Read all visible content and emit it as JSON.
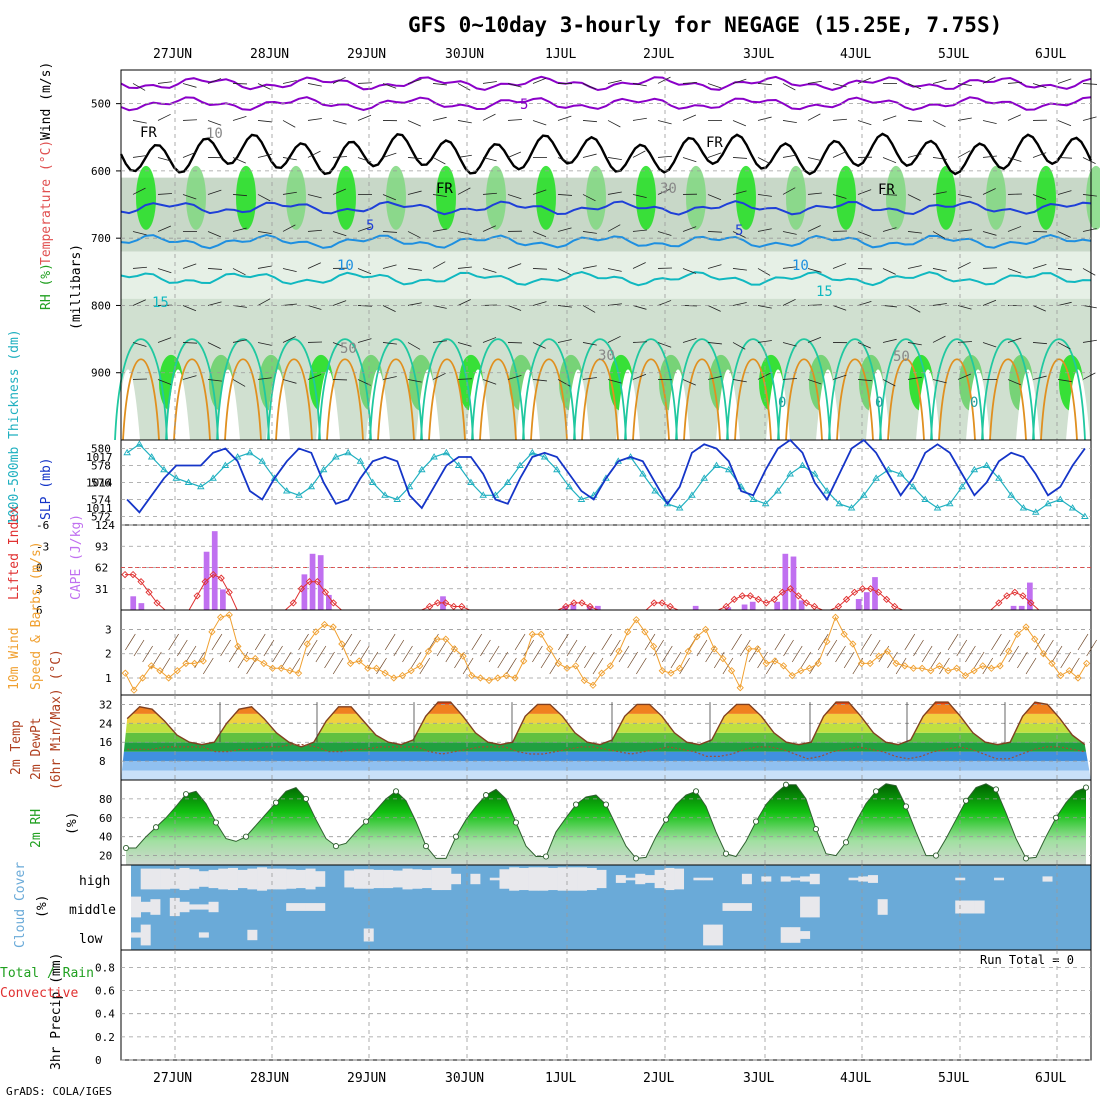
{
  "title": "GFS 0~10day 3-hourly for NEGAGE (15.25E, 7.75S)",
  "credit": "GrADS: COLA/IGES",
  "run_total": "Run Total = 0",
  "colors": {
    "grid": "#9a9a9a",
    "temp_purple": "#8a00c8",
    "temp_blue": "#1e3fd8",
    "temp_lightblue": "#1e8fe0",
    "temp_cyan": "#10b8c0",
    "temp_teal": "#20c8a0",
    "temp_orange": "#e09020",
    "slp": "#1535c8",
    "thickness": "#20b0c0",
    "cape": "#c070f0",
    "lifted": "#e03030",
    "wind10m": "#f0a030",
    "cloud": "#6aaad8",
    "cloud_light": "#e8e8ec"
  },
  "chart_data": [
    {
      "type": "heatmap",
      "panel": "upper-air",
      "ylabels": [
        "Temperature (°C)",
        "Wind (m/s)",
        "RH (%)",
        "(millibars)"
      ],
      "yticks": [
        500,
        600,
        700,
        800,
        900
      ],
      "ylim": [
        1000,
        450
      ],
      "x_dates": [
        "27JUN",
        "28JUN",
        "29JUN",
        "30JUN",
        "1JUL",
        "2JUL",
        "3JUL",
        "4JUL",
        "5JUL",
        "6JUL"
      ],
      "contour_labels": [
        "FR",
        "FR",
        "FR",
        "FR",
        "5",
        "5",
        "5",
        "10",
        "10",
        "15",
        "15",
        "50",
        "30",
        "10",
        "30",
        "50",
        "0",
        "0",
        "0"
      ]
    },
    {
      "type": "line",
      "panel": "slp-thickness",
      "ylabels": [
        "1000-500mb Thickness (dm)",
        "SLP (mb)"
      ],
      "y_left_ticks": [
        572,
        574,
        576,
        578,
        580
      ],
      "y_right_ticks": [
        1011,
        1014,
        1017
      ],
      "series": [
        {
          "name": "SLP (mb)",
          "ylim": [
            1009,
            1019
          ],
          "values": [
            1012,
            1010.5,
            1012.5,
            1014.5,
            1016,
            1016,
            1016,
            1017.5,
            1018,
            1016.5,
            1013,
            1012,
            1014.5,
            1016.5,
            1018,
            1017.5,
            1014,
            1011.5,
            1012,
            1014.5,
            1016.5,
            1017,
            1016.5,
            1012.5,
            1011,
            1013.5,
            1016,
            1017,
            1017,
            1015,
            1012,
            1011.5,
            1014.5,
            1017,
            1017.5,
            1017,
            1015,
            1013,
            1012,
            1014.5,
            1016.5,
            1017,
            1016.5,
            1014,
            1011.5,
            1013.5,
            1017.5,
            1018.5,
            1018,
            1016.5,
            1013,
            1012.5,
            1015.5,
            1018,
            1019,
            1017.5,
            1014,
            1012,
            1015,
            1018,
            1019,
            1017.5,
            1015,
            1012.5,
            1014.5,
            1017.5,
            1018.5,
            1017.5,
            1015,
            1012.5,
            1014,
            1016.5,
            1017.5,
            1017,
            1015,
            1012.5,
            1013.5,
            1016,
            1018
          ]
        },
        {
          "name": "Thickness (dm)",
          "ylim": [
            571,
            581
          ],
          "values": [
            579.5,
            580.5,
            579,
            577.5,
            576.5,
            576,
            575.5,
            576.5,
            578,
            579,
            579.5,
            578.5,
            576.5,
            575,
            574.5,
            575.5,
            577.5,
            579,
            579.5,
            578.5,
            576,
            574.5,
            574,
            575.5,
            577.5,
            579,
            579.5,
            578,
            576,
            574.5,
            574.5,
            576,
            578,
            579.5,
            579,
            577.5,
            575.5,
            574,
            574.5,
            576.5,
            578.5,
            579,
            577,
            575,
            573.5,
            573,
            574.5,
            576.5,
            578,
            577.5,
            575.5,
            574,
            573.5,
            575,
            577,
            578,
            577,
            575,
            573.5,
            573,
            574.5,
            576.5,
            577.5,
            577,
            575.5,
            574,
            573,
            573.5,
            575.5,
            577.5,
            578,
            576.5,
            574.5,
            573,
            572.5,
            573.5,
            574,
            573,
            572
          ]
        }
      ]
    },
    {
      "type": "bar",
      "panel": "cape-li",
      "ylabels": [
        "Lifted Index",
        "CAPE (J/kg)"
      ],
      "y_left_ticks": [
        -6,
        -3,
        0,
        3,
        6
      ],
      "y_right_ticks": [
        124,
        93,
        62,
        31
      ],
      "series": [
        {
          "name": "CAPE (J/kg)",
          "ylim": [
            0,
            124
          ],
          "values": [
            0,
            20,
            10,
            0,
            0,
            0,
            0,
            0,
            0,
            0,
            85,
            115,
            30,
            0,
            0,
            0,
            0,
            0,
            0,
            0,
            0,
            0,
            52,
            82,
            80,
            22,
            0,
            0,
            0,
            0,
            0,
            0,
            0,
            0,
            0,
            0,
            0,
            0,
            0,
            20,
            0,
            0,
            0,
            0,
            0,
            0,
            0,
            0,
            0,
            0,
            0,
            0,
            0,
            0,
            6,
            8,
            0,
            6,
            6,
            0,
            0,
            0,
            0,
            0,
            0,
            0,
            0,
            0,
            0,
            0,
            6,
            0,
            0,
            0,
            4,
            0,
            8,
            12,
            0,
            0,
            12,
            82,
            78,
            14,
            0,
            0,
            0,
            0,
            0,
            0,
            16,
            26,
            48,
            0,
            0,
            0,
            0,
            0,
            0,
            0,
            0,
            0,
            0,
            0,
            0,
            0,
            0,
            0,
            0,
            6,
            6,
            40,
            0,
            0,
            0,
            0,
            0,
            0,
            0
          ]
        },
        {
          "name": "Lifted Index",
          "ylim": [
            6,
            -6
          ],
          "values": [
            1,
            1,
            2,
            3.5,
            5,
            6,
            6,
            6,
            6,
            4,
            2,
            1,
            1.5,
            3.5,
            6,
            6,
            6,
            6,
            6,
            6,
            6,
            5,
            3,
            2,
            2,
            3.5,
            5,
            6,
            6,
            6,
            6,
            6,
            6,
            6,
            6,
            6,
            6,
            6,
            5.5,
            5,
            5,
            5.5,
            5.5,
            6,
            6,
            6,
            6,
            6,
            6,
            6,
            6,
            6,
            6,
            6,
            6,
            5.5,
            5,
            5,
            5.5,
            6,
            6,
            6,
            6,
            6,
            6,
            6,
            5,
            5,
            5.5,
            6,
            6,
            6,
            6,
            6,
            6,
            5.5,
            4.5,
            4,
            4,
            4.5,
            5,
            4.5,
            3.5,
            3,
            4,
            5,
            5.5,
            6,
            6,
            5.5,
            4.5,
            3.5,
            3,
            3,
            3.5,
            4.5,
            5.5,
            6,
            6,
            6,
            6,
            6,
            6,
            6,
            6,
            6,
            6,
            6,
            6,
            5,
            4,
            3.5,
            4,
            5,
            6,
            6,
            6,
            6,
            6,
            6,
            6
          ]
        }
      ]
    },
    {
      "type": "line",
      "panel": "wind10m",
      "ylabels": [
        "10m Wind",
        "Speed & Barbs (m/s)"
      ],
      "yticks": [
        1,
        2,
        3
      ],
      "ylim": [
        0.3,
        3.8
      ],
      "values": [
        1.2,
        0.5,
        1.0,
        1.5,
        1.3,
        1.0,
        1.3,
        1.6,
        1.6,
        1.7,
        2.9,
        3.5,
        3.6,
        2.3,
        1.8,
        1.8,
        1.6,
        1.4,
        1.4,
        1.3,
        1.2,
        2.4,
        2.9,
        3.2,
        3.1,
        2.4,
        1.6,
        1.7,
        1.4,
        1.4,
        1.2,
        1.0,
        1.1,
        1.3,
        1.5,
        2.1,
        2.6,
        2.6,
        2.2,
        1.9,
        1.1,
        1.0,
        0.9,
        1.0,
        1.1,
        1.0,
        1.7,
        2.8,
        2.8,
        2.2,
        1.6,
        1.4,
        1.5,
        0.9,
        0.7,
        1.2,
        1.5,
        2.1,
        2.9,
        3.4,
        2.9,
        2.3,
        1.3,
        1.2,
        1.4,
        2.1,
        2.7,
        3.0,
        2.2,
        1.8,
        1.3,
        0.6,
        2.2,
        2.2,
        1.6,
        1.7,
        1.5,
        1.1,
        1.3,
        1.4,
        1.6,
        2.5,
        3.5,
        2.8,
        2.4,
        1.6,
        1.6,
        1.9,
        2.1,
        1.6,
        1.5,
        1.4,
        1.4,
        1.3,
        1.5,
        1.3,
        1.4,
        1.1,
        1.3,
        1.5,
        1.4,
        1.5,
        2.1,
        2.8,
        3.1,
        2.6,
        2.0,
        1.6,
        1.1,
        1.3,
        1.0,
        1.6
      ]
    },
    {
      "type": "area",
      "panel": "temperature",
      "ylabels": [
        "2m Temp",
        "2m DewPt",
        "(6hr Min/Max) (°C)"
      ],
      "yticks": [
        8,
        16,
        24,
        32
      ],
      "ylim": [
        0,
        36
      ],
      "series": [
        {
          "name": "2m Temp",
          "values": [
            26,
            31,
            30,
            25,
            19,
            16,
            15,
            16,
            24,
            30,
            31,
            26,
            20,
            16,
            14,
            16,
            25,
            31,
            31,
            25,
            19,
            16,
            15,
            17,
            27,
            33,
            33,
            27,
            20,
            16,
            15,
            16,
            27,
            32,
            32,
            27,
            20,
            16,
            15,
            17,
            27,
            32,
            32,
            27,
            20,
            16,
            15,
            17,
            27,
            32,
            32,
            27,
            20,
            16,
            15,
            16,
            27,
            33,
            33,
            27,
            20,
            16,
            15,
            17,
            27,
            33,
            33,
            27,
            20,
            16,
            15,
            16,
            27,
            33,
            32,
            26,
            19,
            15
          ]
        },
        {
          "name": "2m DewPt",
          "values": [
            13,
            13,
            13,
            14,
            14,
            14,
            14,
            12,
            12,
            13,
            13,
            14,
            14,
            15,
            15,
            14,
            12,
            12,
            13,
            13,
            14,
            14,
            14,
            14,
            12,
            11,
            12,
            13,
            14,
            14,
            14,
            12,
            11,
            11,
            12,
            13,
            14,
            14,
            13,
            12,
            11,
            12,
            13,
            14,
            13,
            12,
            10,
            10,
            11,
            13,
            14,
            14,
            13,
            11,
            9,
            10,
            12,
            13,
            14,
            13,
            12,
            10,
            9,
            10,
            12,
            13,
            14,
            13,
            11,
            9,
            9,
            11,
            13,
            14,
            14,
            13,
            12
          ]
        }
      ]
    },
    {
      "type": "area",
      "panel": "rh2m",
      "ylabels": [
        "2m RH",
        "(%)"
      ],
      "yticks": [
        20,
        40,
        60,
        80
      ],
      "ylim": [
        10,
        100
      ],
      "values": [
        28,
        28,
        40,
        50,
        60,
        72,
        85,
        88,
        75,
        55,
        38,
        35,
        40,
        52,
        64,
        76,
        88,
        92,
        80,
        58,
        38,
        30,
        33,
        45,
        56,
        68,
        80,
        88,
        78,
        56,
        30,
        17,
        17,
        40,
        58,
        72,
        84,
        90,
        80,
        55,
        30,
        19,
        19,
        45,
        60,
        74,
        82,
        84,
        74,
        52,
        30,
        17,
        18,
        40,
        58,
        74,
        84,
        88,
        72,
        45,
        22,
        19,
        35,
        56,
        74,
        86,
        95,
        95,
        80,
        48,
        22,
        20,
        34,
        56,
        75,
        88,
        96,
        94,
        72,
        45,
        20,
        20,
        38,
        58,
        78,
        92,
        96,
        90,
        65,
        38,
        17,
        18,
        40,
        60,
        76,
        88,
        92
      ]
    },
    {
      "type": "heatmap",
      "panel": "cloud",
      "ylabels": [
        "Cloud Cover",
        "(%)"
      ],
      "row_labels": [
        "high",
        "middle",
        "low"
      ],
      "cloud_high": [
        0,
        80,
        80,
        80,
        75,
        85,
        75,
        60,
        70,
        80,
        85,
        70,
        80,
        90,
        80,
        80,
        75,
        70,
        80,
        60,
        0,
        0,
        65,
        75,
        75,
        70,
        70,
        65,
        80,
        75,
        70,
        85,
        85,
        40,
        0,
        40,
        0,
        10,
        75,
        90,
        85,
        90,
        90,
        85,
        90,
        90,
        90,
        85,
        70,
        0,
        30,
        10,
        40,
        30,
        70,
        85,
        80,
        0,
        10,
        10,
        0,
        0,
        0,
        40,
        0,
        20,
        0,
        20,
        10,
        20,
        40,
        0,
        0,
        0,
        10,
        20,
        30,
        0,
        0,
        0,
        0,
        0,
        0,
        0,
        0,
        10,
        0,
        0,
        0,
        10,
        0,
        0,
        0,
        0,
        20,
        0,
        0,
        0,
        0
      ],
      "cloud_mid": [
        80,
        40,
        60,
        0,
        70,
        40,
        20,
        20,
        40,
        0,
        0,
        0,
        0,
        0,
        0,
        0,
        30,
        30,
        30,
        30,
        0,
        0,
        0,
        0,
        0,
        0,
        0,
        0,
        0,
        0,
        0,
        0,
        0,
        0,
        0,
        0,
        0,
        0,
        0,
        0,
        0,
        0,
        0,
        0,
        0,
        0,
        0,
        0,
        0,
        0,
        0,
        0,
        0,
        0,
        0,
        0,
        0,
        0,
        0,
        0,
        0,
        30,
        30,
        30,
        0,
        0,
        0,
        0,
        0,
        80,
        80,
        0,
        0,
        0,
        0,
        0,
        0,
        60,
        0,
        0,
        0,
        0,
        0,
        0,
        0,
        50,
        50,
        50,
        0,
        0,
        0,
        0,
        0,
        0,
        0,
        0,
        0,
        0,
        0
      ],
      "cloud_low": [
        20,
        80,
        0,
        0,
        0,
        0,
        0,
        20,
        0,
        0,
        0,
        0,
        40,
        0,
        0,
        0,
        0,
        0,
        0,
        0,
        0,
        0,
        0,
        0,
        50,
        0,
        0,
        0,
        0,
        0,
        0,
        0,
        0,
        0,
        0,
        0,
        0,
        0,
        0,
        0,
        0,
        0,
        0,
        0,
        0,
        0,
        0,
        0,
        0,
        0,
        0,
        0,
        0,
        0,
        0,
        0,
        0,
        0,
        0,
        80,
        80,
        0,
        0,
        0,
        0,
        0,
        0,
        60,
        60,
        30,
        0,
        0,
        0,
        0,
        0,
        0,
        0,
        0,
        0,
        0,
        0,
        0,
        0,
        0,
        0,
        0,
        0,
        0,
        0,
        0,
        0,
        0,
        0,
        0,
        0,
        0,
        0,
        0,
        0
      ]
    },
    {
      "type": "bar",
      "panel": "precip",
      "ylabels": [
        "Total / Rain",
        "Convective",
        "3hr Precip (mm)"
      ],
      "yticks": [
        0,
        0.2,
        0.4,
        0.6,
        0.8
      ],
      "ylim": [
        0,
        0.95
      ],
      "values": []
    }
  ]
}
